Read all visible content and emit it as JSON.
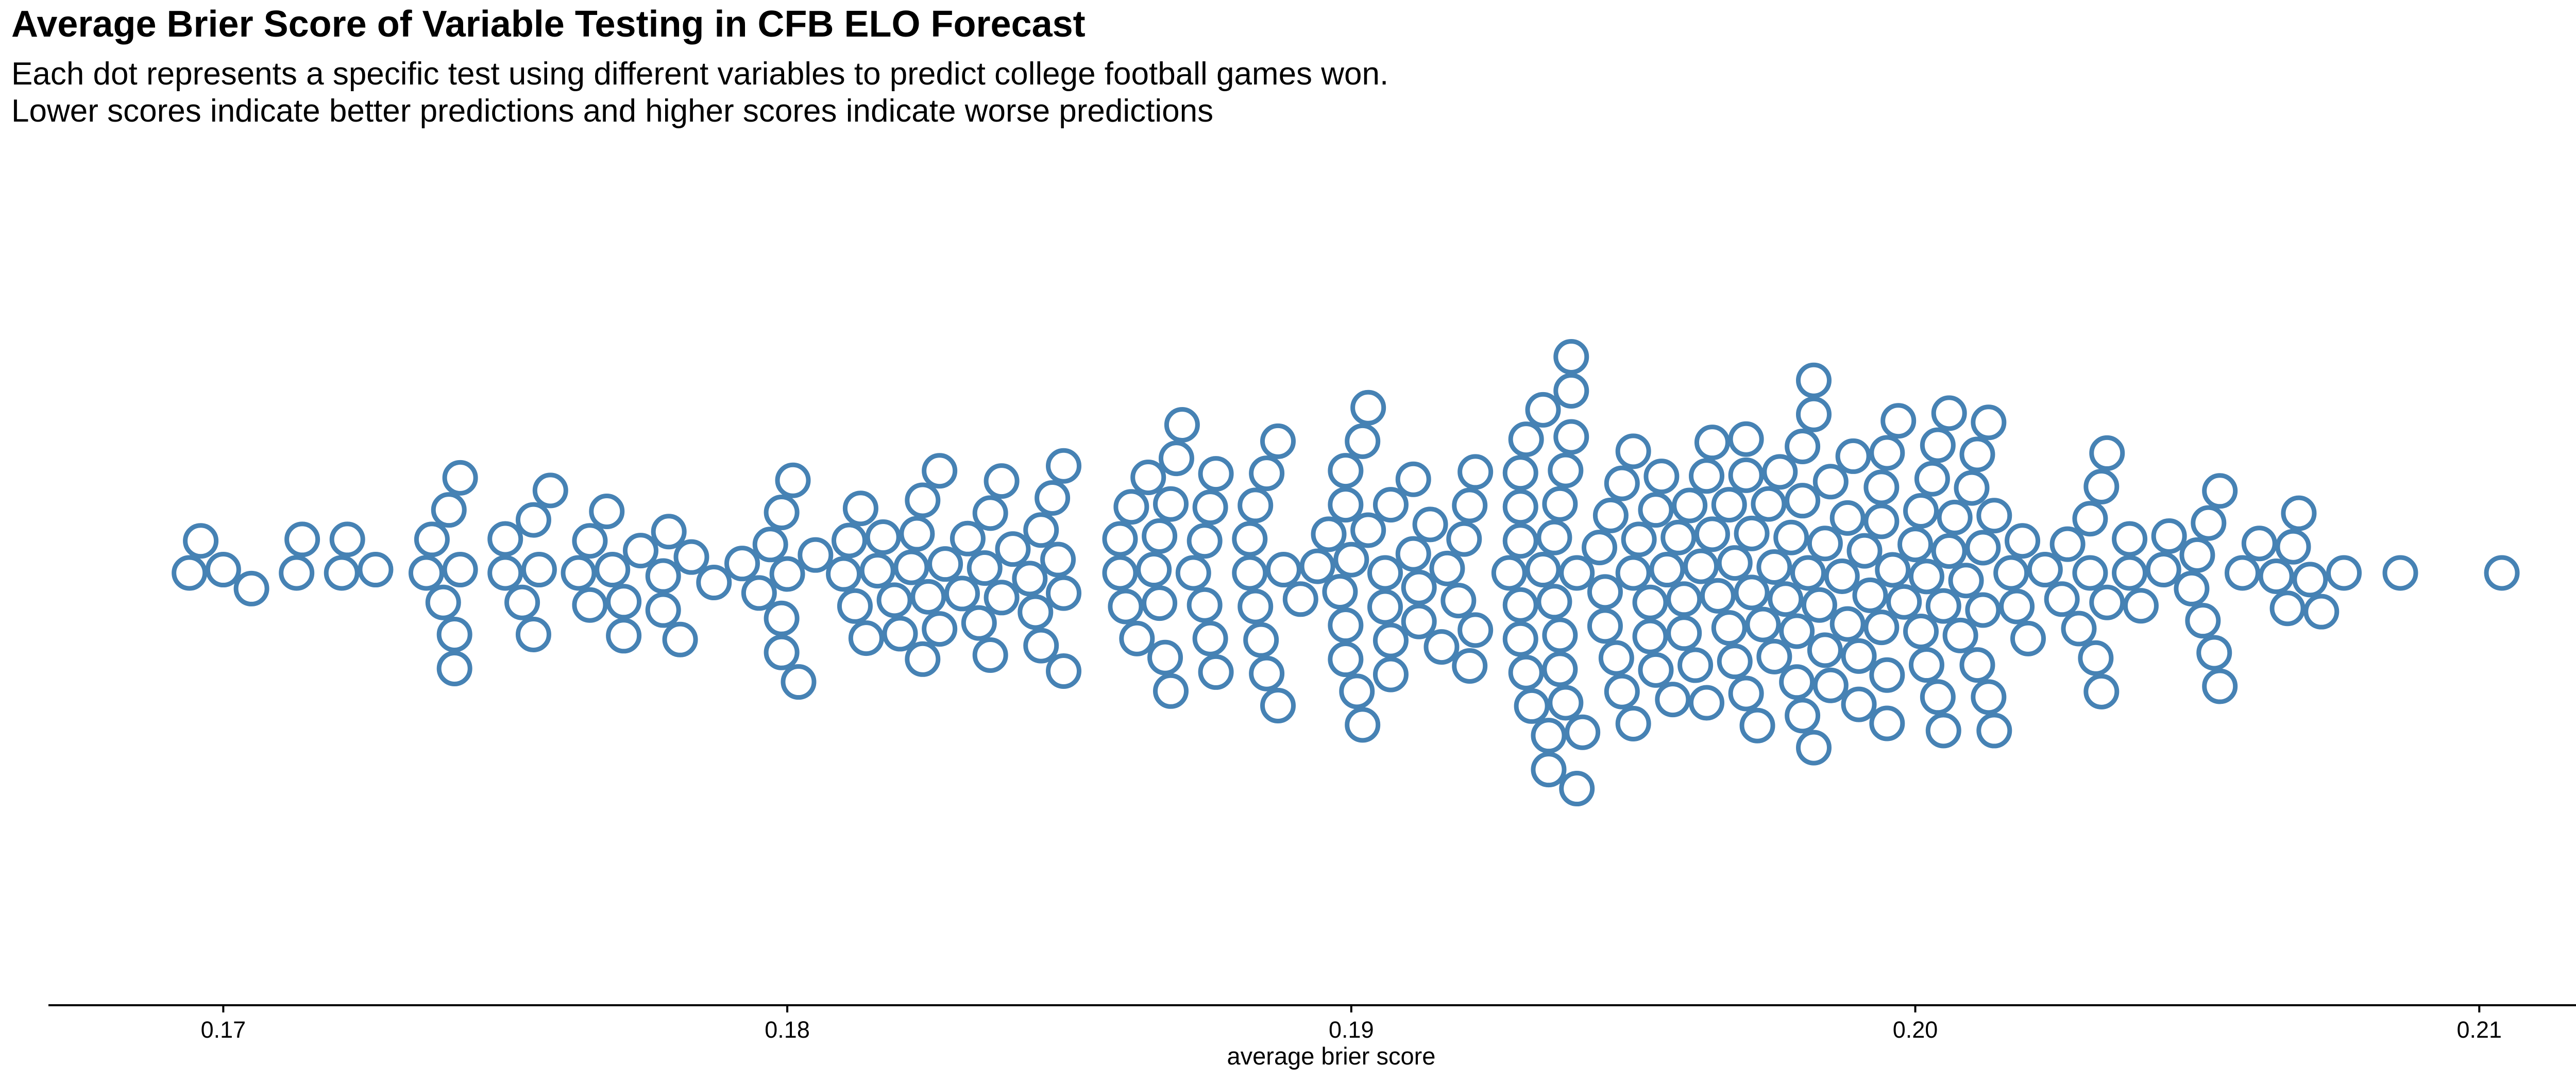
{
  "chart_data": {
    "type": "scatter",
    "subtype": "beeswarm",
    "title": "Average Brier Score of Variable Testing in CFB ELO Forecast",
    "subtitle": [
      "Each dot represents a specific test using different variables to predict college football games won.",
      "Lower scores indicate better predictions and higher scores indicate worse predictions"
    ],
    "xlabel": "average brier score",
    "ylabel": "",
    "xlim": [
      0.1669,
      0.2124
    ],
    "x_ticks": [
      "0.17",
      "0.18",
      "0.19",
      "0.20",
      "0.21"
    ],
    "grid": false,
    "legend": "none",
    "marker_stroke": "#4682B4",
    "marker_fill": "#FFFFFF",
    "axis_color": "#000000",
    "values": [
      0.1694,
      0.1696,
      0.17,
      0.1705,
      0.1713,
      0.1714,
      0.1721,
      0.1722,
      0.1727,
      0.1736,
      0.1737,
      0.1739,
      0.174,
      0.1741,
      0.1741,
      0.1742,
      0.1742,
      0.175,
      0.175,
      0.1753,
      0.1755,
      0.1755,
      0.1756,
      0.1758,
      0.1763,
      0.1765,
      0.1765,
      0.1768,
      0.1769,
      0.1771,
      0.1771,
      0.1774,
      0.1778,
      0.1778,
      0.1779,
      0.1781,
      0.1783,
      0.1787,
      0.1792,
      0.1795,
      0.1797,
      0.1799,
      0.1799,
      0.1799,
      0.18,
      0.1801,
      0.1802,
      0.1805,
      0.181,
      0.1811,
      0.1812,
      0.1813,
      0.1814,
      0.1816,
      0.1817,
      0.1819,
      0.182,
      0.1822,
      0.1823,
      0.1824,
      0.1824,
      0.1825,
      0.1827,
      0.1827,
      0.1828,
      0.1831,
      0.1832,
      0.1834,
      0.1835,
      0.1836,
      0.1836,
      0.1838,
      0.1838,
      0.184,
      0.1843,
      0.1844,
      0.1845,
      0.1845,
      0.1847,
      0.1848,
      0.1849,
      0.1849,
      0.1849,
      0.1859,
      0.1859,
      0.186,
      0.1861,
      0.1862,
      0.1864,
      0.1865,
      0.1866,
      0.1866,
      0.1867,
      0.1868,
      0.1868,
      0.1869,
      0.187,
      0.1872,
      0.1874,
      0.1874,
      0.1875,
      0.1875,
      0.1876,
      0.1876,
      0.1882,
      0.1882,
      0.1883,
      0.1883,
      0.1884,
      0.1885,
      0.1885,
      0.1887,
      0.1887,
      0.1888,
      0.1891,
      0.1894,
      0.1896,
      0.1898,
      0.1899,
      0.1899,
      0.1899,
      0.1899,
      0.19,
      0.1901,
      0.1902,
      0.1902,
      0.1903,
      0.1903,
      0.1906,
      0.1906,
      0.1907,
      0.1907,
      0.1907,
      0.1911,
      0.1911,
      0.1912,
      0.1912,
      0.1914,
      0.1916,
      0.1917,
      0.1919,
      0.192,
      0.1921,
      0.1921,
      0.1922,
      0.1922,
      0.1928,
      0.193,
      0.193,
      0.193,
      0.193,
      0.193,
      0.1931,
      0.1931,
      0.1932,
      0.1934,
      0.1934,
      0.1935,
      0.1935,
      0.1936,
      0.1936,
      0.1937,
      0.1937,
      0.1937,
      0.1938,
      0.1938,
      0.1939,
      0.1939,
      0.1939,
      0.194,
      0.194,
      0.1941,
      0.1944,
      0.1945,
      0.1945,
      0.1946,
      0.1947,
      0.1948,
      0.1948,
      0.195,
      0.195,
      0.195,
      0.1951,
      0.1953,
      0.1953,
      0.1954,
      0.1954,
      0.1955,
      0.1956,
      0.1957,
      0.1958,
      0.1959,
      0.1959,
      0.196,
      0.1961,
      0.1962,
      0.1963,
      0.1963,
      0.1964,
      0.1964,
      0.1965,
      0.1967,
      0.1967,
      0.1968,
      0.1968,
      0.197,
      0.197,
      0.197,
      0.1971,
      0.1971,
      0.1972,
      0.1973,
      0.1974,
      0.1975,
      0.1975,
      0.1976,
      0.1977,
      0.1978,
      0.1979,
      0.1979,
      0.198,
      0.198,
      0.198,
      0.1981,
      0.1982,
      0.1982,
      0.1982,
      0.1983,
      0.1984,
      0.1984,
      0.1985,
      0.1985,
      0.1987,
      0.1988,
      0.1988,
      0.1989,
      0.199,
      0.199,
      0.1991,
      0.1992,
      0.1994,
      0.1994,
      0.1994,
      0.1995,
      0.1995,
      0.1995,
      0.1996,
      0.1997,
      0.1998,
      0.2,
      0.2001,
      0.2001,
      0.2002,
      0.2002,
      0.2003,
      0.2004,
      0.2004,
      0.2005,
      0.2005,
      0.2006,
      0.2006,
      0.2007,
      0.2008,
      0.2009,
      0.201,
      0.2011,
      0.2011,
      0.2012,
      0.2012,
      0.2013,
      0.2013,
      0.2014,
      0.2014,
      0.2017,
      0.2018,
      0.2019,
      0.202,
      0.2023,
      0.2026,
      0.2027,
      0.2029,
      0.2031,
      0.2031,
      0.2032,
      0.2033,
      0.2033,
      0.2034,
      0.2034,
      0.2038,
      0.2038,
      0.204,
      0.2044,
      0.2045,
      0.2049,
      0.205,
      0.2051,
      0.2052,
      0.2053,
      0.2054,
      0.2054,
      0.2058,
      0.2061,
      0.2064,
      0.2066,
      0.2067,
      0.2068,
      0.207,
      0.2072,
      0.2076,
      0.2086,
      0.2104
    ]
  }
}
